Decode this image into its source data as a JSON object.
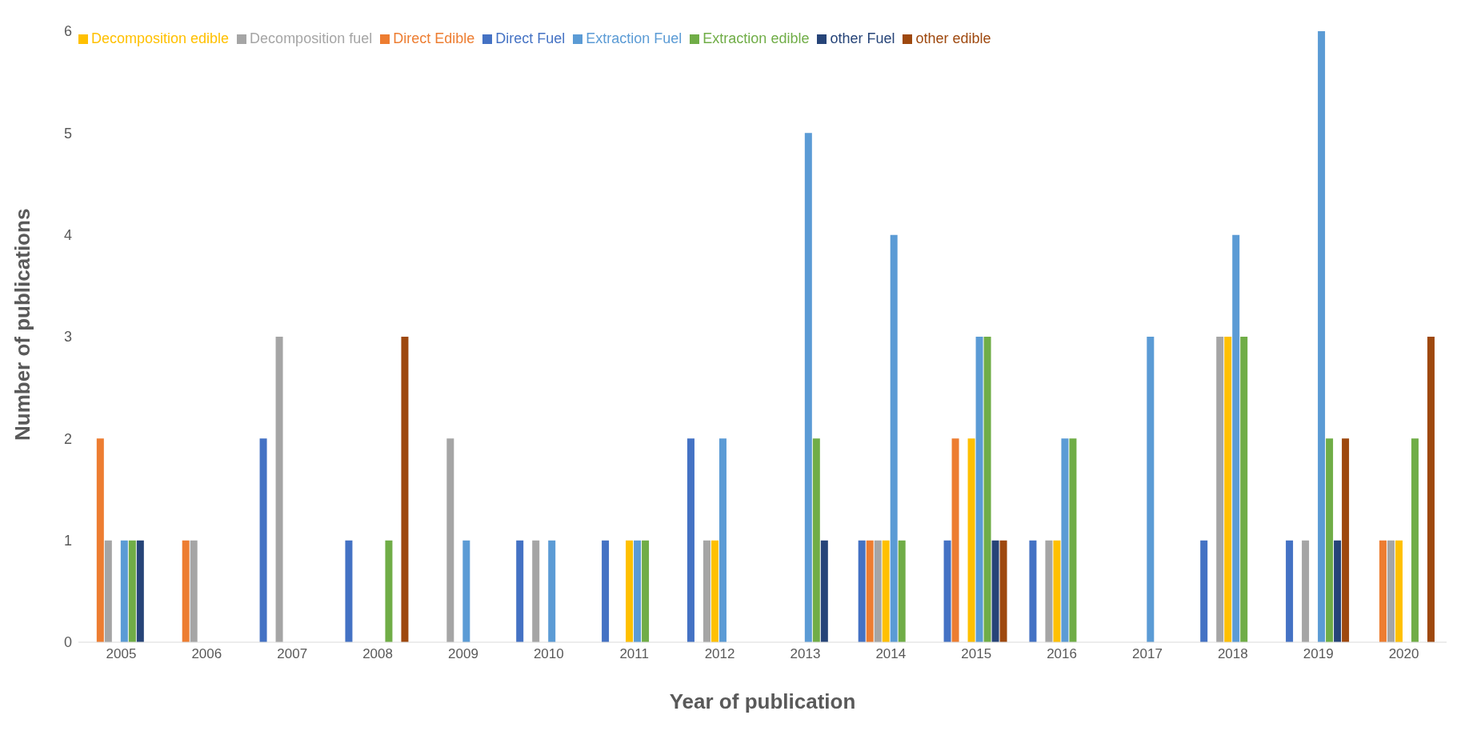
{
  "chart_data": {
    "type": "bar",
    "xlabel": "Year of publication",
    "ylabel": "Number of publications",
    "categories": [
      "2005",
      "2006",
      "2007",
      "2008",
      "2009",
      "2010",
      "2011",
      "2012",
      "2013",
      "2014",
      "2015",
      "2016",
      "2017",
      "2018",
      "2019",
      "2020"
    ],
    "series": [
      {
        "name": "Direct Fuel",
        "color": "#4472c4",
        "values": [
          0,
          0,
          2,
          1,
          0,
          1,
          1,
          2,
          0,
          1,
          1,
          1,
          0,
          1,
          1,
          0
        ]
      },
      {
        "name": "Direct Edible",
        "color": "#ed7d31",
        "values": [
          2,
          1,
          0,
          0,
          0,
          0,
          0,
          0,
          0,
          1,
          2,
          0,
          0,
          0,
          0,
          1
        ]
      },
      {
        "name": "Decomposition fuel",
        "color": "#a5a5a5",
        "values": [
          1,
          1,
          3,
          0,
          2,
          1,
          0,
          1,
          0,
          1,
          0,
          1,
          0,
          3,
          1,
          1
        ]
      },
      {
        "name": "Decomposition edible",
        "color": "#ffc000",
        "values": [
          0,
          0,
          0,
          0,
          0,
          0,
          1,
          1,
          0,
          1,
          2,
          1,
          0,
          3,
          0,
          1
        ]
      },
      {
        "name": "Extraction Fuel",
        "color": "#5b9bd5",
        "values": [
          1,
          0,
          0,
          0,
          1,
          1,
          1,
          2,
          5,
          4,
          3,
          2,
          3,
          4,
          6,
          0
        ]
      },
      {
        "name": "Extraction edible",
        "color": "#70ad47",
        "values": [
          1,
          0,
          0,
          1,
          0,
          0,
          1,
          0,
          2,
          1,
          3,
          2,
          0,
          3,
          2,
          2
        ]
      },
      {
        "name": "other Fuel",
        "color": "#264478",
        "values": [
          1,
          0,
          0,
          0,
          0,
          0,
          0,
          0,
          1,
          0,
          1,
          0,
          0,
          0,
          1,
          0
        ]
      },
      {
        "name": "other edible",
        "color": "#9e480e",
        "values": [
          0,
          0,
          0,
          3,
          0,
          0,
          0,
          0,
          0,
          0,
          1,
          0,
          0,
          0,
          2,
          3
        ]
      }
    ],
    "ylim": [
      0,
      6
    ],
    "yticks": [
      0,
      1,
      2,
      3,
      4,
      5,
      6
    ],
    "grid": false,
    "legend": "top left"
  }
}
